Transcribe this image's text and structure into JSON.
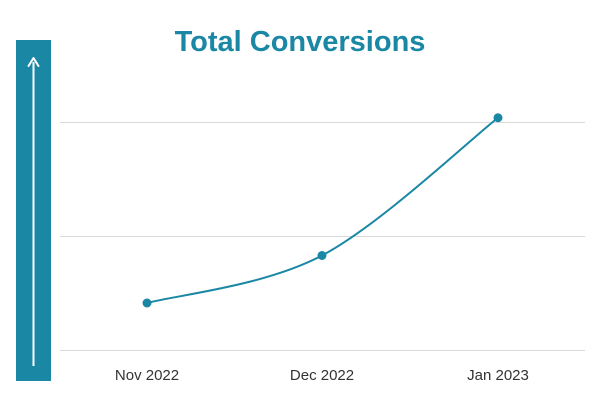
{
  "chart_data": {
    "type": "line",
    "title": "Total Conversions",
    "categories": [
      "Nov 2022",
      "Dec 2022",
      "Jan 2023"
    ],
    "series": [
      {
        "values": [
          1,
          2,
          4.9
        ]
      }
    ],
    "ylim": [
      -0.2,
      5.8
    ],
    "y_gridlines": [
      0,
      2.4,
      4.8
    ],
    "grid": true,
    "legend": "none",
    "y_axis_style": "arrow-bar",
    "colors": {
      "accent": "#1a87a4",
      "line": "#1a87a4",
      "grid": "#d9d9d9"
    }
  }
}
